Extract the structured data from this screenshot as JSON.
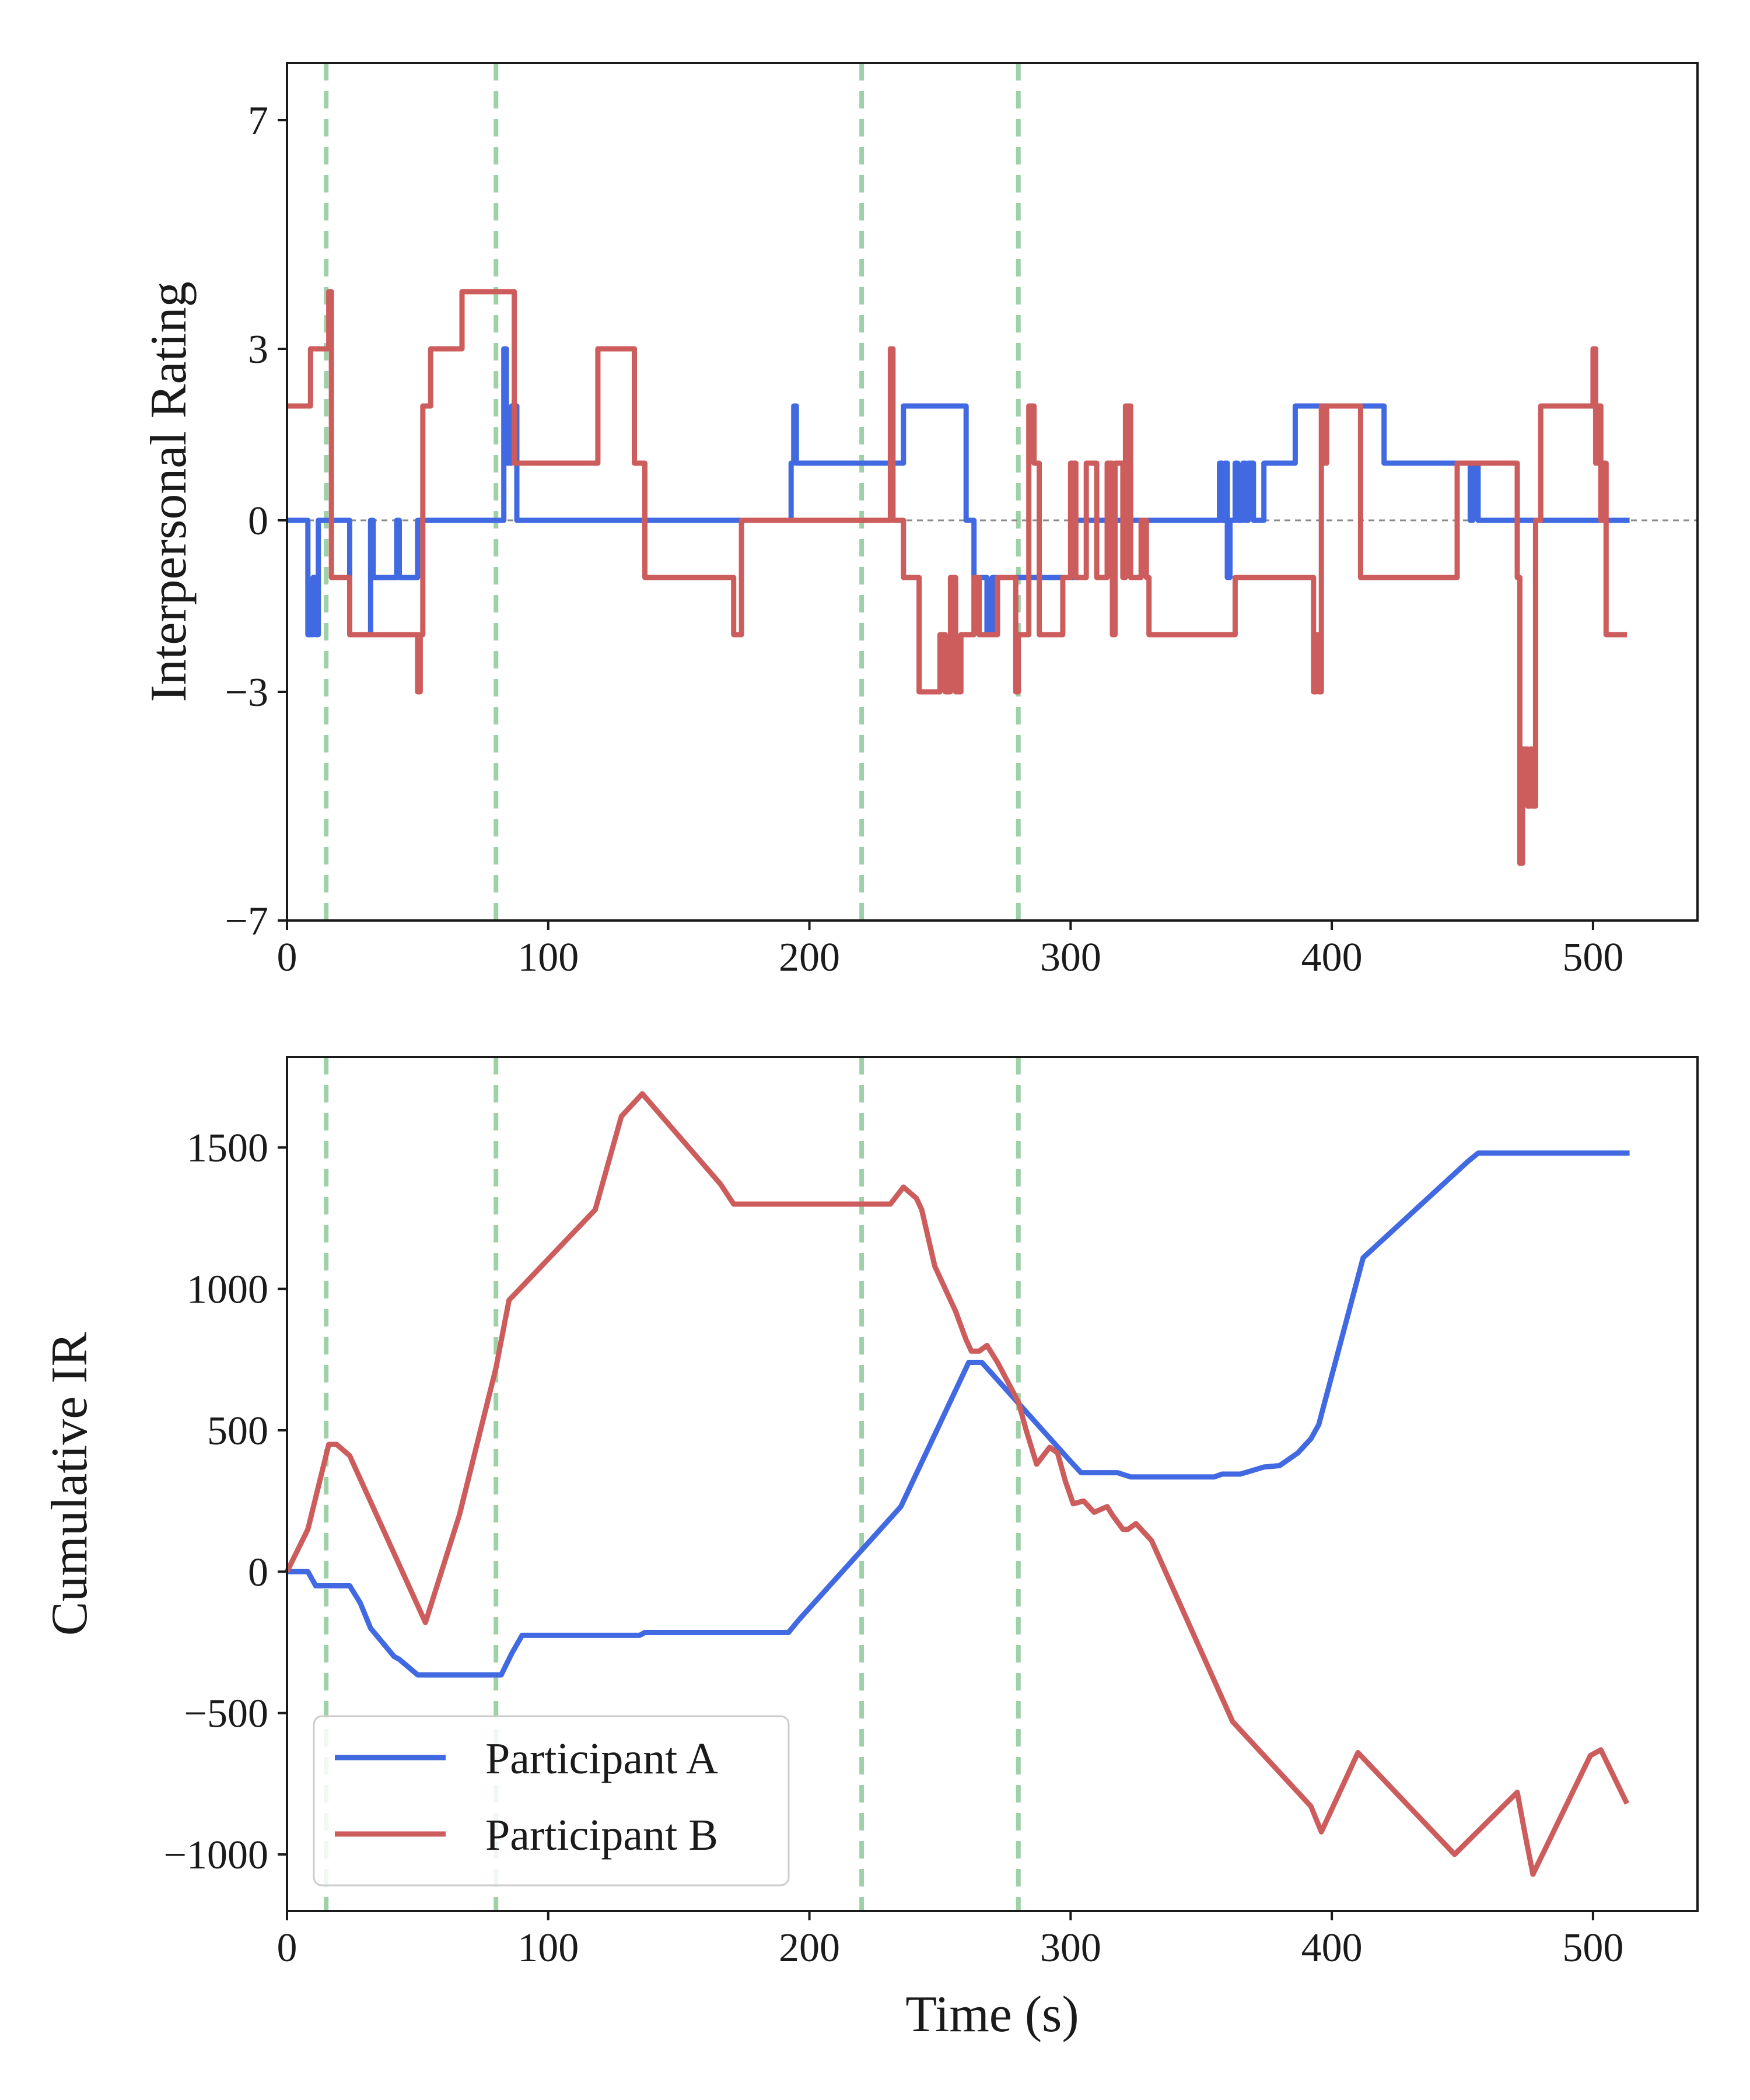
{
  "chart_data": [
    {
      "type": "line",
      "ylabel": "Interpersonal Rating",
      "xlabel": "",
      "xlim": [
        0,
        540
      ],
      "ylim": [
        -7,
        8
      ],
      "x_ticks": [
        0,
        100,
        200,
        300,
        400,
        500
      ],
      "x_tick_labels": [
        "0",
        "100",
        "200",
        "300",
        "400",
        "500"
      ],
      "y_ticks": [
        7,
        3,
        0,
        -3,
        -7
      ],
      "y_tick_labels": [
        "7",
        "3",
        "0",
        "−3",
        "−7"
      ],
      "zero_line": true,
      "event_markers": [
        15,
        80,
        220,
        280
      ],
      "series": [
        {
          "name": "Participant A",
          "color": "#4169e1",
          "step": true,
          "points": [
            [
              0,
              0
            ],
            [
              7,
              0
            ],
            [
              8,
              -2
            ],
            [
              10,
              -1
            ],
            [
              11,
              -2
            ],
            [
              12,
              0
            ],
            [
              20,
              0
            ],
            [
              22,
              0
            ],
            [
              24,
              -2
            ],
            [
              30,
              -2
            ],
            [
              32,
              0
            ],
            [
              33,
              -1
            ],
            [
              41,
              -1
            ],
            [
              42,
              0
            ],
            [
              43,
              -1
            ],
            [
              49,
              -1
            ],
            [
              50,
              0
            ],
            [
              82,
              0
            ],
            [
              83,
              3
            ],
            [
              84,
              1
            ],
            [
              86,
              2
            ],
            [
              88,
              0
            ],
            [
              192,
              0
            ],
            [
              193,
              1
            ],
            [
              194,
              2
            ],
            [
              195,
              1
            ],
            [
              235,
              1
            ],
            [
              236,
              2
            ],
            [
              259,
              2
            ],
            [
              260,
              0
            ],
            [
              262,
              0
            ],
            [
              263,
              -1
            ],
            [
              268,
              -2
            ],
            [
              270,
              -1
            ],
            [
              300,
              -1
            ],
            [
              301,
              0
            ],
            [
              356,
              0
            ],
            [
              357,
              1
            ],
            [
              358,
              0
            ],
            [
              359,
              1
            ],
            [
              360,
              -1
            ],
            [
              361,
              0
            ],
            [
              362,
              0
            ],
            [
              363,
              1
            ],
            [
              364,
              0
            ],
            [
              366,
              1
            ],
            [
              367,
              0
            ],
            [
              368,
              1
            ],
            [
              370,
              0
            ],
            [
              373,
              0
            ],
            [
              374,
              1
            ],
            [
              385,
              1
            ],
            [
              386,
              2
            ],
            [
              419,
              2
            ],
            [
              420,
              1
            ],
            [
              452,
              1
            ],
            [
              453,
              0
            ],
            [
              454,
              1
            ],
            [
              456,
              0
            ],
            [
              514,
              0
            ]
          ]
        },
        {
          "name": "Participant B",
          "color": "#cd5c5c",
          "step": true,
          "points": [
            [
              0,
              2
            ],
            [
              8,
              2
            ],
            [
              9,
              3
            ],
            [
              15,
              3
            ],
            [
              16,
              4
            ],
            [
              17,
              -1
            ],
            [
              21,
              -1
            ],
            [
              23,
              -1
            ],
            [
              24,
              -2
            ],
            [
              49,
              -2
            ],
            [
              50,
              -3
            ],
            [
              51,
              -2
            ],
            [
              52,
              2
            ],
            [
              54,
              2
            ],
            [
              55,
              3
            ],
            [
              66,
              3
            ],
            [
              67,
              4
            ],
            [
              85,
              4
            ],
            [
              87,
              1
            ],
            [
              118,
              1
            ],
            [
              119,
              3
            ],
            [
              128,
              3
            ],
            [
              133,
              1
            ],
            [
              136,
              1
            ],
            [
              137,
              -1
            ],
            [
              170,
              -1
            ],
            [
              171,
              -2
            ],
            [
              173,
              -2
            ],
            [
              174,
              0
            ],
            [
              230,
              0
            ],
            [
              231,
              3
            ],
            [
              232,
              0
            ],
            [
              236,
              -1
            ],
            [
              241,
              -1
            ],
            [
              242,
              -3
            ],
            [
              249,
              -3
            ],
            [
              250,
              -2
            ],
            [
              252,
              -3
            ],
            [
              254,
              -1
            ],
            [
              256,
              -3
            ],
            [
              258,
              -2
            ],
            [
              262,
              -2
            ],
            [
              263,
              -1
            ],
            [
              265,
              -2
            ],
            [
              270,
              -2
            ],
            [
              272,
              -1
            ],
            [
              278,
              -1
            ],
            [
              279,
              -3
            ],
            [
              280,
              -2
            ],
            [
              283,
              -2
            ],
            [
              284,
              2
            ],
            [
              286,
              1
            ],
            [
              288,
              -2
            ],
            [
              296,
              -2
            ],
            [
              297,
              -1
            ],
            [
              300,
              1
            ],
            [
              302,
              -1
            ],
            [
              305,
              -1
            ],
            [
              306,
              1
            ],
            [
              310,
              -1
            ],
            [
              313,
              -1
            ],
            [
              314,
              1
            ],
            [
              316,
              -2
            ],
            [
              317,
              1
            ],
            [
              320,
              -1
            ],
            [
              321,
              2
            ],
            [
              323,
              -1
            ],
            [
              326,
              -1
            ],
            [
              327,
              0
            ],
            [
              329,
              -1
            ],
            [
              330,
              -2
            ],
            [
              362,
              -2
            ],
            [
              363,
              -1
            ],
            [
              392,
              -1
            ],
            [
              393,
              -3
            ],
            [
              394,
              -2
            ],
            [
              395,
              -3
            ],
            [
              396,
              2
            ],
            [
              397,
              1
            ],
            [
              398,
              2
            ],
            [
              410,
              2
            ],
            [
              411,
              -1
            ],
            [
              447,
              -1
            ],
            [
              448,
              1
            ],
            [
              470,
              1
            ],
            [
              471,
              -1
            ],
            [
              472,
              -6
            ],
            [
              473,
              -4
            ],
            [
              475,
              -5
            ],
            [
              476,
              -4
            ],
            [
              477,
              -5
            ],
            [
              478,
              0
            ],
            [
              480,
              2
            ],
            [
              499,
              2
            ],
            [
              500,
              3
            ],
            [
              501,
              1
            ],
            [
              502,
              2
            ],
            [
              503,
              0
            ],
            [
              504,
              1
            ],
            [
              505,
              -2
            ],
            [
              513,
              -2
            ]
          ]
        }
      ]
    },
    {
      "type": "line",
      "ylabel": "Cumulative IR",
      "xlabel": "Time (s)",
      "xlim": [
        0,
        540
      ],
      "ylim": [
        -1200,
        1820
      ],
      "x_ticks": [
        0,
        100,
        200,
        300,
        400,
        500
      ],
      "x_tick_labels": [
        "0",
        "100",
        "200",
        "300",
        "400",
        "500"
      ],
      "y_ticks": [
        1500,
        1000,
        500,
        0,
        -500,
        -1000
      ],
      "y_tick_labels": [
        "1500",
        "1000",
        "500",
        "0",
        "−500",
        "−1000"
      ],
      "legend_position": "lower-left",
      "event_markers": [
        15,
        80,
        220,
        280
      ],
      "series": [
        {
          "name": "Participant A",
          "color": "#4169e1",
          "points": [
            [
              0,
              0
            ],
            [
              8,
              0
            ],
            [
              11,
              -50
            ],
            [
              24,
              -50
            ],
            [
              28,
              -110
            ],
            [
              32,
              -200
            ],
            [
              41,
              -300
            ],
            [
              43,
              -310
            ],
            [
              50,
              -365
            ],
            [
              82,
              -365
            ],
            [
              86,
              -290
            ],
            [
              90,
              -225
            ],
            [
              135,
              -225
            ],
            [
              137,
              -215
            ],
            [
              192,
              -215
            ],
            [
              196,
              -170
            ],
            [
              235,
              230
            ],
            [
              261,
              740
            ],
            [
              266,
              740
            ],
            [
              300,
              390
            ],
            [
              304,
              350
            ],
            [
              318,
              350
            ],
            [
              323,
              335
            ],
            [
              355,
              335
            ],
            [
              358,
              345
            ],
            [
              365,
              345
            ],
            [
              374,
              370
            ],
            [
              380,
              375
            ],
            [
              387,
              420
            ],
            [
              392,
              470
            ],
            [
              395,
              520
            ],
            [
              412,
              1110
            ],
            [
              452,
              1450
            ],
            [
              456,
              1480
            ],
            [
              514,
              1480
            ]
          ]
        },
        {
          "name": "Participant B",
          "color": "#cd5c5c",
          "points": [
            [
              0,
              0
            ],
            [
              8,
              150
            ],
            [
              16,
              450
            ],
            [
              19,
              450
            ],
            [
              24,
              410
            ],
            [
              53,
              -180
            ],
            [
              66,
              200
            ],
            [
              80,
              720
            ],
            [
              85,
              960
            ],
            [
              118,
              1280
            ],
            [
              128,
              1610
            ],
            [
              136,
              1690
            ],
            [
              166,
              1370
            ],
            [
              171,
              1300
            ],
            [
              231,
              1300
            ],
            [
              236,
              1360
            ],
            [
              241,
              1320
            ],
            [
              243,
              1280
            ],
            [
              248,
              1080
            ],
            [
              256,
              920
            ],
            [
              260,
              820
            ],
            [
              262,
              780
            ],
            [
              265,
              780
            ],
            [
              268,
              800
            ],
            [
              272,
              740
            ],
            [
              280,
              600
            ],
            [
              283,
              500
            ],
            [
              287,
              380
            ],
            [
              292,
              440
            ],
            [
              295,
              420
            ],
            [
              298,
              320
            ],
            [
              301,
              240
            ],
            [
              305,
              250
            ],
            [
              309,
              210
            ],
            [
              314,
              230
            ],
            [
              316,
              200
            ],
            [
              320,
              150
            ],
            [
              322,
              150
            ],
            [
              325,
              170
            ],
            [
              331,
              110
            ],
            [
              362,
              -530
            ],
            [
              392,
              -830
            ],
            [
              396,
              -920
            ],
            [
              410,
              -640
            ],
            [
              447,
              -1000
            ],
            [
              471,
              -780
            ],
            [
              474,
              -930
            ],
            [
              477,
              -1070
            ],
            [
              499,
              -650
            ],
            [
              503,
              -630
            ],
            [
              513,
              -820
            ]
          ]
        }
      ]
    }
  ]
}
